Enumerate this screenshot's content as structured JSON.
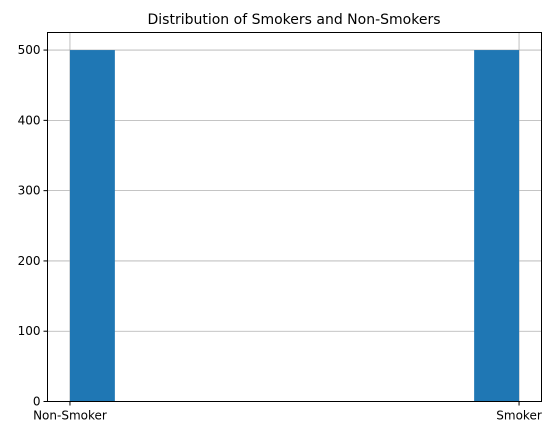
{
  "chart_data": {
    "type": "bar",
    "title": "Distribution of Smokers and Non-Smokers",
    "xlabel": "",
    "ylabel": "",
    "categories": [
      "Non-Smoker",
      "Smoker"
    ],
    "x_ticks": [
      "Non-Smoker",
      "Smoker"
    ],
    "values": [
      500,
      500
    ],
    "ylim": [
      0,
      525
    ],
    "y_ticks": [
      0,
      100,
      200,
      300,
      400,
      500
    ],
    "grid": true,
    "bar_color": "#1f77b4"
  }
}
